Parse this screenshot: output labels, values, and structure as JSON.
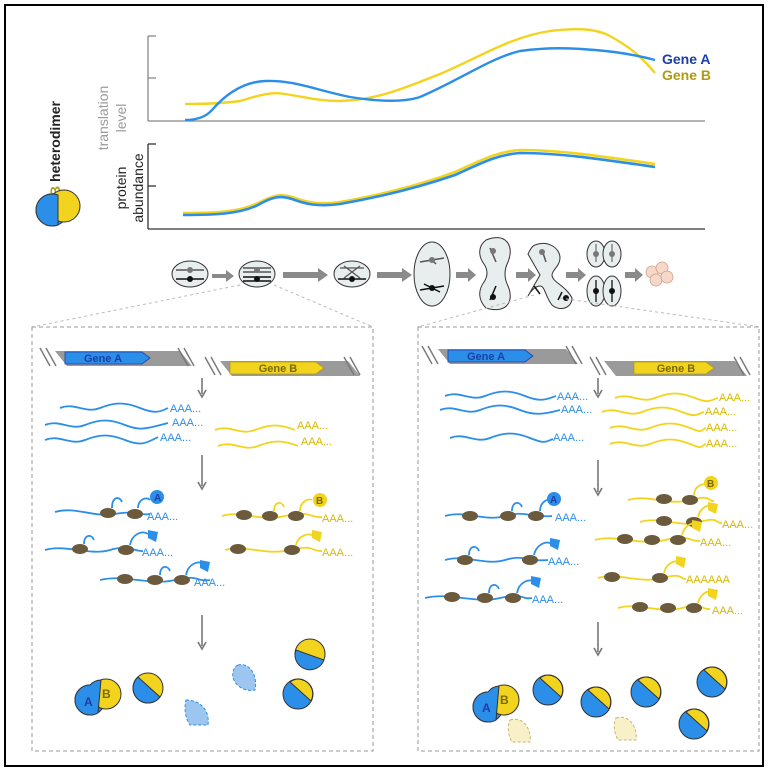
{
  "legend": {
    "a": "A",
    "slash": "/",
    "b": "B",
    "rest": " heterodimer"
  },
  "axes": {
    "translation_line1": "translation",
    "translation_line2": "level",
    "protein_line1": "protein",
    "protein_line2": "abundance"
  },
  "series": {
    "gene_a": "Gene A",
    "gene_b": "Gene B"
  },
  "genes": {
    "gene_a_label": "Gene A",
    "gene_b_label": "Gene B"
  },
  "transcripts": {
    "polyA": "AAA...",
    "polyA_long": "AAAAAA"
  },
  "dimer_labels": {
    "a": "A",
    "b": "B"
  },
  "colors": {
    "gene_a": "#2b8ee8",
    "gene_a_dark": "#1c3fa8",
    "gene_b": "#f2d41e",
    "gene_b_dark": "#b09a10",
    "ribosome": "#6b5a3c",
    "axis_gray": "#909090",
    "arrow_gray": "#8a8a8a",
    "cell_fill": "#e7eeed"
  }
}
